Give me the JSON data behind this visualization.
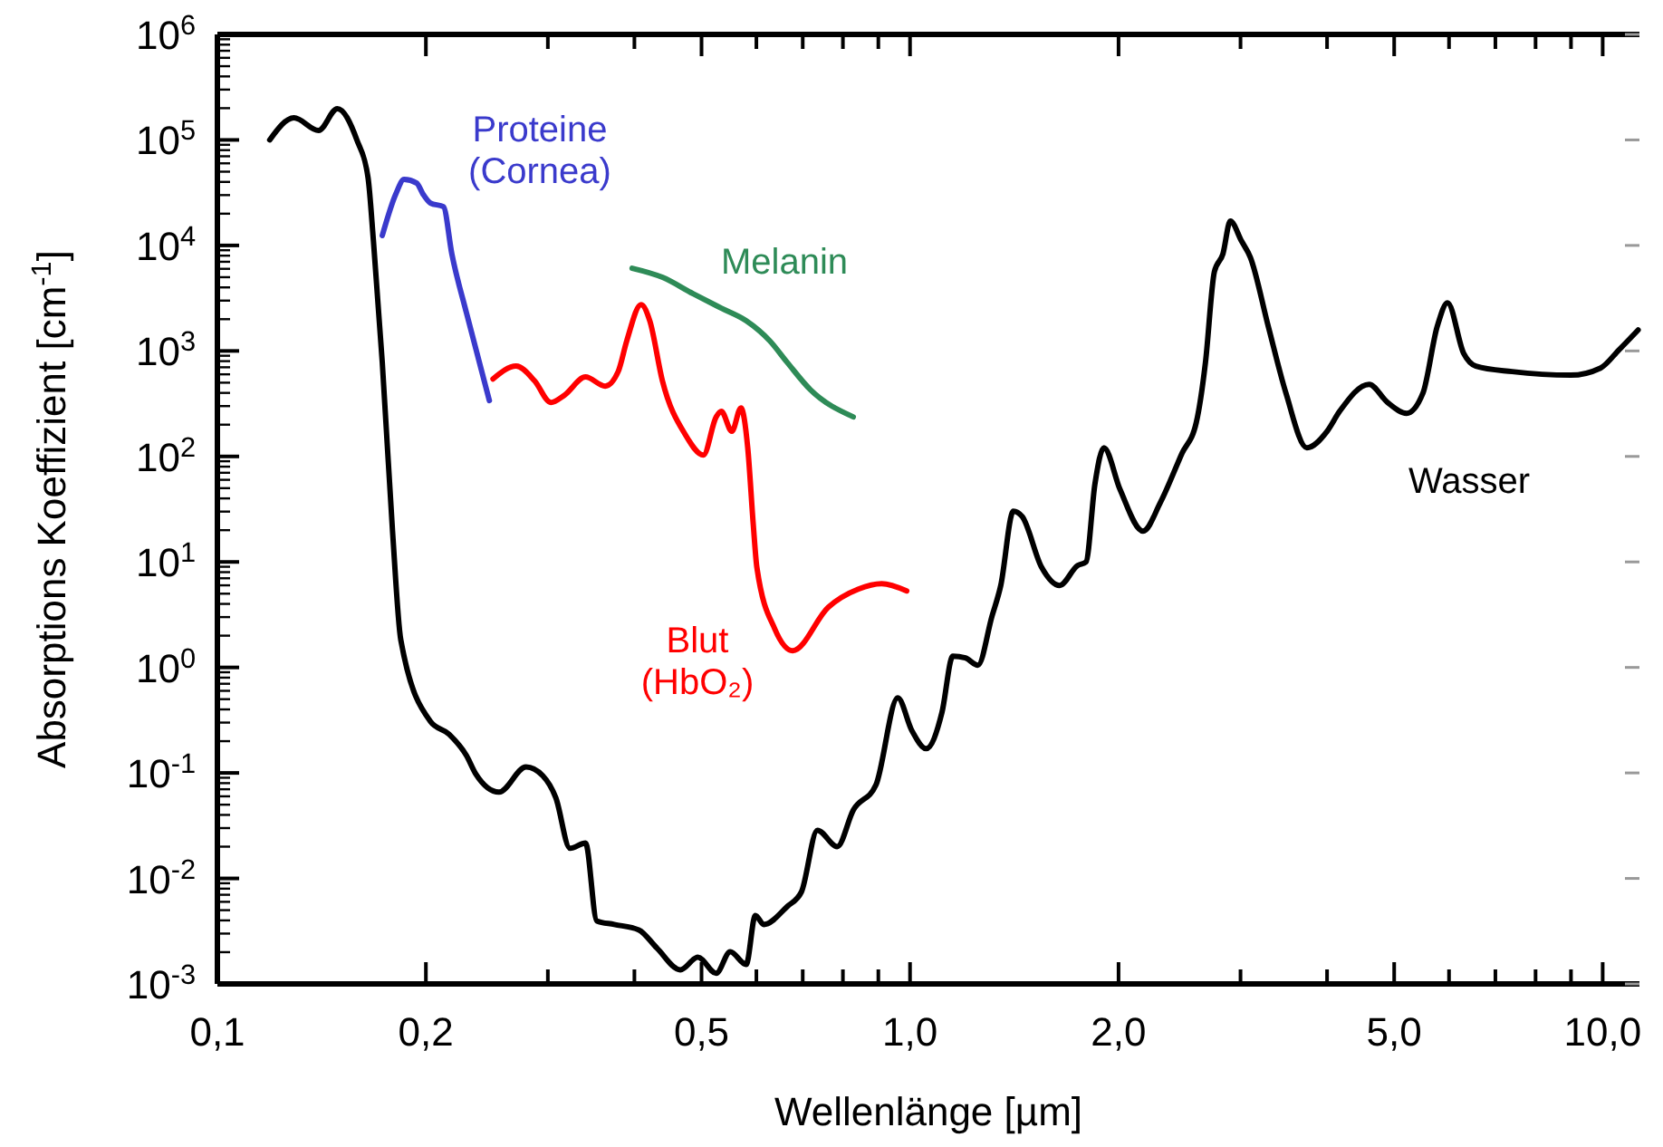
{
  "chart_data": {
    "type": "line",
    "xlabel": "Wellenlänge [µm]",
    "ylabel": "Absorptions Koeffizient  [cm$^{-1}$]",
    "log": "xy",
    "grid": false,
    "marker": "none",
    "line_style": "solid",
    "xlim": [
      0.1,
      11.3
    ],
    "ylim": [
      0.001,
      1000000
    ],
    "xticks": [
      {
        "value": 0.1,
        "label": "0,1"
      },
      {
        "value": 0.2,
        "label": "0,2"
      },
      {
        "value": 0.3,
        "label": null
      },
      {
        "value": 0.4,
        "label": null
      },
      {
        "value": 0.5,
        "label": "0,5"
      },
      {
        "value": 0.6,
        "label": null
      },
      {
        "value": 0.7,
        "label": null
      },
      {
        "value": 0.8,
        "label": null
      },
      {
        "value": 0.9,
        "label": null
      },
      {
        "value": 1,
        "label": "1,0"
      },
      {
        "value": 2,
        "label": "2,0"
      },
      {
        "value": 3,
        "label": null
      },
      {
        "value": 4,
        "label": null
      },
      {
        "value": 5,
        "label": "5,0"
      },
      {
        "value": 6,
        "label": null
      },
      {
        "value": 7,
        "label": null
      },
      {
        "value": 8,
        "label": null
      },
      {
        "value": 9,
        "label": null
      },
      {
        "value": 10,
        "label": "10,0"
      }
    ],
    "yticks": [
      {
        "value": 0.001,
        "label": "10$^{-3}$"
      },
      {
        "value": 0.01,
        "label": "10$^{-2}$"
      },
      {
        "value": 0.1,
        "label": "10$^{-1}$"
      },
      {
        "value": 1,
        "label": "10$^{0}$"
      },
      {
        "value": 10,
        "label": "10$^{1}$"
      },
      {
        "value": 100,
        "label": "10$^{2}$"
      },
      {
        "value": 1000,
        "label": "10$^{3}$"
      },
      {
        "value": 10000,
        "label": "10$^{4}$"
      },
      {
        "value": 100000,
        "label": "10$^{5}$"
      },
      {
        "value": 1000000,
        "label": "10$^{6}$"
      }
    ],
    "series": [
      {
        "name": "Wasser",
        "color": "#000000",
        "x": [
          0.119,
          0.129,
          0.14,
          0.149,
          0.159,
          0.165,
          0.168,
          0.173,
          0.179,
          0.184,
          0.203,
          0.216,
          0.229,
          0.236,
          0.255,
          0.279,
          0.295,
          0.308,
          0.323,
          0.34,
          0.353,
          0.374,
          0.406,
          0.431,
          0.466,
          0.494,
          0.525,
          0.55,
          0.58,
          0.598,
          0.615,
          0.665,
          0.697,
          0.735,
          0.785,
          0.828,
          0.893,
          0.96,
          1.006,
          1.055,
          1.112,
          1.153,
          1.202,
          1.253,
          1.313,
          1.352,
          1.41,
          1.452,
          1.549,
          1.644,
          1.745,
          1.795,
          1.849,
          1.905,
          2.01,
          2.17,
          2.3,
          2.47,
          2.59,
          2.67,
          2.75,
          2.83,
          2.9,
          3.01,
          3.1,
          3.29,
          3.49,
          3.74,
          4.0,
          4.17,
          4.6,
          4.89,
          5.21,
          5.5,
          5.77,
          5.97,
          6.3,
          6.56,
          7.4,
          8.99,
          9.93,
          10.55,
          11.25
        ],
        "values": [
          100000,
          162000,
          123000,
          198000,
          100000,
          44000,
          11000,
          780,
          19.6,
          1.82,
          0.308,
          0.233,
          0.145,
          0.098,
          0.0658,
          0.114,
          0.094,
          0.0583,
          0.0193,
          0.0217,
          0.00396,
          0.00366,
          0.00325,
          0.00219,
          0.00136,
          0.00179,
          0.00126,
          0.00202,
          0.00153,
          0.00446,
          0.00366,
          0.00543,
          0.00746,
          0.0286,
          0.02,
          0.0443,
          0.077,
          0.514,
          0.252,
          0.17,
          0.375,
          1.28,
          1.23,
          1.05,
          3.05,
          5.98,
          30.3,
          26.9,
          8.87,
          5.98,
          9.25,
          10,
          54.8,
          121,
          48.6,
          19.6,
          36.9,
          107,
          210,
          776,
          5610,
          8340,
          17000,
          11000,
          7710,
          1710,
          396,
          121,
          173,
          267,
          483,
          325,
          256,
          396,
          1710,
          2860,
          946,
          718,
          637,
          589,
          689,
          1020,
          1580
        ]
      },
      {
        "name": "Proteine (Cornea)",
        "color": "#3a3acc",
        "x": [
          0.173,
          0.181,
          0.186,
          0.194,
          0.198,
          0.203,
          0.212,
          0.218,
          0.229,
          0.247
        ],
        "values": [
          12400,
          30800,
          42200,
          39000,
          30800,
          25200,
          23300,
          8340,
          2260,
          338
        ]
      },
      {
        "name": "Melanin",
        "color": "#2e8b57",
        "x": [
          0.397,
          0.439,
          0.486,
          0.534,
          0.58,
          0.627,
          0.665,
          0.718,
          0.828
        ],
        "values": [
          6080,
          4990,
          3490,
          2540,
          1930,
          1250,
          776,
          429,
          237
        ]
      },
      {
        "name": "Blut (HbO₂)",
        "color": "#ff0000",
        "x": [
          0.25,
          0.27,
          0.287,
          0.303,
          0.317,
          0.34,
          0.363,
          0.379,
          0.39,
          0.409,
          0.421,
          0.439,
          0.474,
          0.503,
          0.525,
          0.534,
          0.553,
          0.57,
          0.583,
          0.594,
          0.601,
          0.638,
          0.677,
          0.762,
          0.842,
          0.91,
          0.989
        ],
        "values": [
          543,
          718,
          522,
          325,
          381,
          566,
          464,
          637,
          1250,
          2750,
          1930,
          522,
          160,
          103,
          237,
          267,
          173,
          288,
          121,
          22.1,
          8.87,
          2.31,
          1.44,
          3.72,
          5.52,
          6.22,
          5.31
        ]
      }
    ]
  }
}
